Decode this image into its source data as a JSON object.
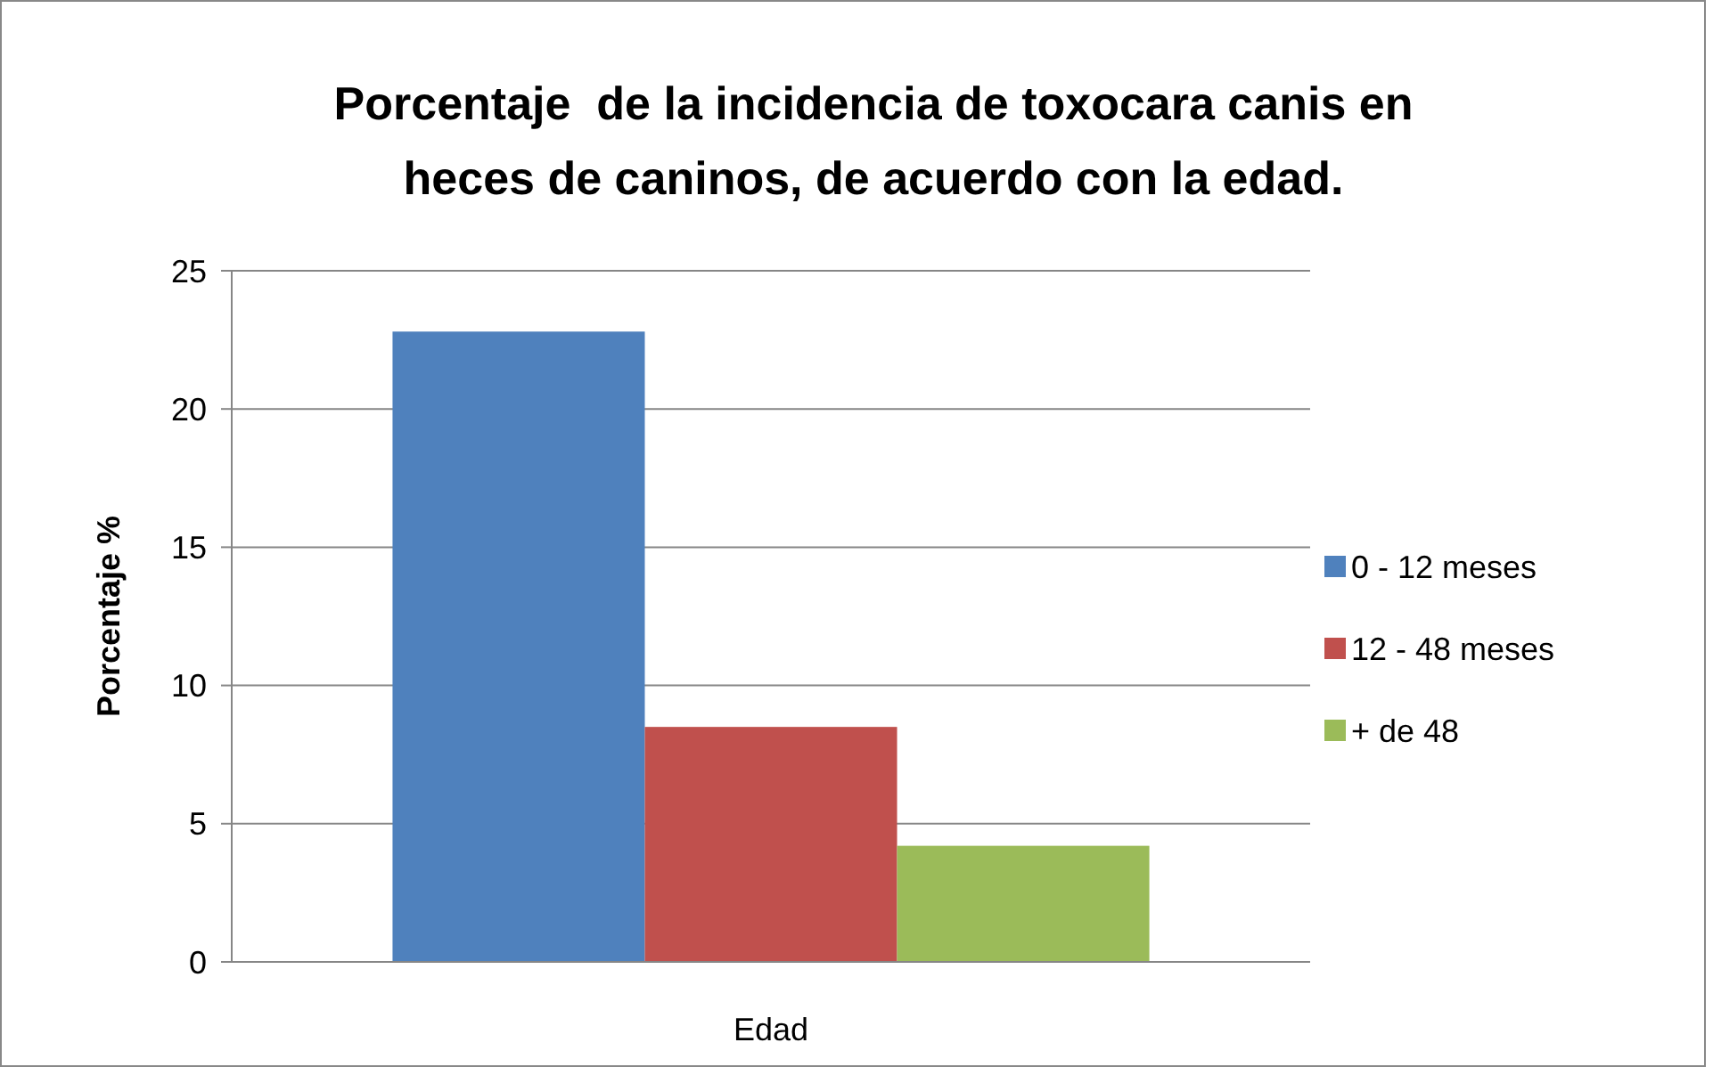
{
  "chart_data": {
    "type": "bar",
    "title": "Porcentaje  de la incidencia de toxocara canis en heces de caninos, de acuerdo con la edad.",
    "xlabel": "Edad",
    "ylabel": "Porcentaje %",
    "categories": [
      null
    ],
    "series": [
      {
        "name": "0 - 12 meses",
        "color": "#4f81bd",
        "values": [
          22.8
        ]
      },
      {
        "name": "12 - 48 meses",
        "color": "#c0504d",
        "values": [
          8.5
        ]
      },
      {
        "name": "+ de 48",
        "color": "#9bbb59",
        "values": [
          4.2
        ]
      }
    ],
    "ylim": [
      0,
      25
    ],
    "yticks": [
      0,
      5,
      10,
      15,
      20,
      25
    ],
    "grid": "y",
    "legend": "right"
  }
}
